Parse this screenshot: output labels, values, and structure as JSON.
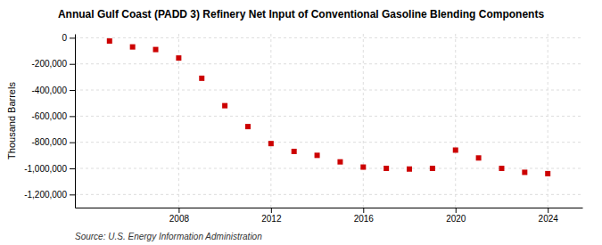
{
  "chart_data": {
    "type": "scatter",
    "title": "Annual Gulf Coast (PADD 3) Refinery Net Input of Conventional Gasoline Blending Components",
    "ylabel": "Thousand Barrels",
    "source": "Source: U.S. Energy Information Administration",
    "x": [
      2005,
      2006,
      2007,
      2008,
      2009,
      2010,
      2011,
      2012,
      2013,
      2014,
      2015,
      2016,
      2017,
      2018,
      2019,
      2020,
      2021,
      2022,
      2023,
      2024
    ],
    "values": [
      -25000,
      -70000,
      -90000,
      -155000,
      -310000,
      -520000,
      -680000,
      -810000,
      -870000,
      -900000,
      -950000,
      -990000,
      -1000000,
      -1005000,
      -1000000,
      -860000,
      -920000,
      -1000000,
      -1030000,
      -1040000
    ],
    "color": "#cc0000",
    "marker": "square",
    "xlim": [
      2003.5,
      2025.5
    ],
    "xticks": [
      2008,
      2012,
      2016,
      2020,
      2024
    ],
    "ylim": [
      -1300000,
      30000
    ],
    "yticks": [
      0,
      {
        "value": -200000,
        "label": "-200,000"
      },
      {
        "value": -400000,
        "label": "-400,000"
      },
      {
        "value": -600000,
        "label": "-600,000"
      },
      {
        "value": -800000,
        "label": "-800,000"
      },
      {
        "value": -1000000,
        "label": "-1,000,000"
      },
      {
        "value": -1200000,
        "label": "-1,200,000"
      }
    ],
    "grid": true
  }
}
